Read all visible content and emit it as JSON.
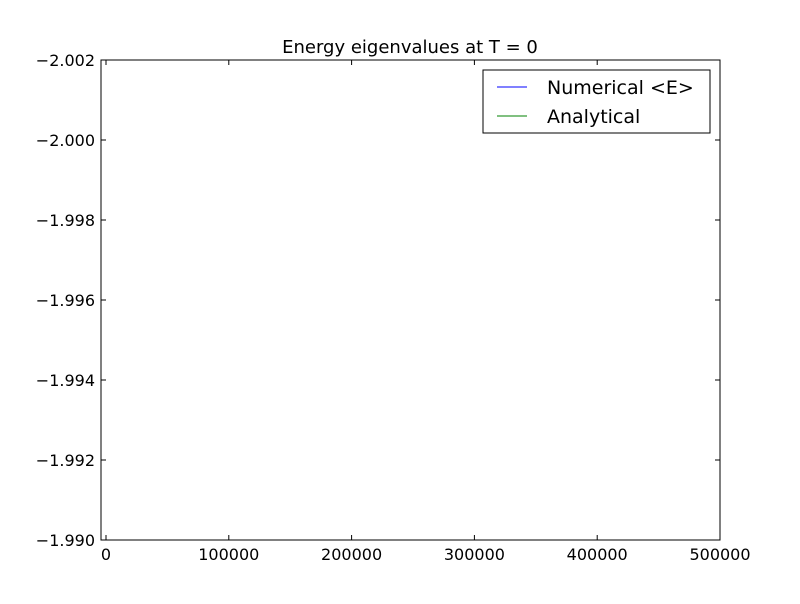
{
  "chart_data": {
    "type": "line",
    "title": "Energy eigenvalues at T = 0",
    "xlabel": "",
    "ylabel": "",
    "xlim": [
      0,
      500000
    ],
    "ylim": [
      -1.99,
      -2.002
    ],
    "y_axis_inverted": true,
    "x_ticks": [
      {
        "value": 0,
        "label": "0"
      },
      {
        "value": 100000,
        "label": "100000"
      },
      {
        "value": 200000,
        "label": "200000"
      },
      {
        "value": 300000,
        "label": "300000"
      },
      {
        "value": 400000,
        "label": "400000"
      },
      {
        "value": 500000,
        "label": "500000"
      }
    ],
    "y_ticks": [
      {
        "value": -2.002,
        "label": "−2.002"
      },
      {
        "value": -2.0,
        "label": "−2.000"
      },
      {
        "value": -1.998,
        "label": "−1.998"
      },
      {
        "value": -1.996,
        "label": "−1.996"
      },
      {
        "value": -1.994,
        "label": "−1.994"
      },
      {
        "value": -1.992,
        "label": "−1.992"
      },
      {
        "value": -1.99,
        "label": "−1.990"
      }
    ],
    "grid": false,
    "legend_position": "top-right",
    "series": [
      {
        "name": "Numerical <E>",
        "color": "#0000ff",
        "x": [],
        "y": []
      },
      {
        "name": "Analytical",
        "color": "#008000",
        "x": [],
        "y": []
      }
    ]
  }
}
